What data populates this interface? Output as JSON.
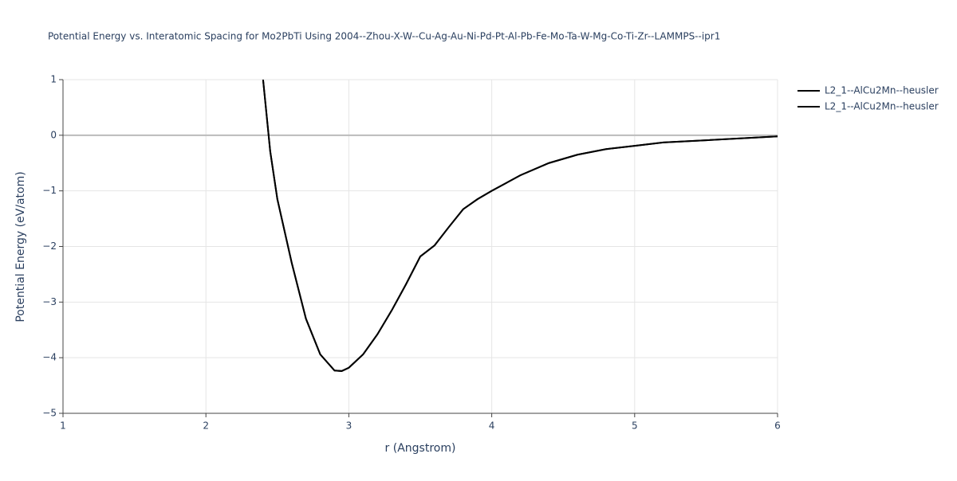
{
  "chart_data": {
    "type": "line",
    "title": "Potential Energy vs. Interatomic Spacing for Mo2PbTi Using 2004--Zhou-X-W--Cu-Ag-Au-Ni-Pd-Pt-Al-Pb-Fe-Mo-Ta-W-Mg-Co-Ti-Zr--LAMMPS--ipr1",
    "x_label": "r (Angstrom)",
    "y_label": "Potential Energy (eV/atom)",
    "x": [
      2.4,
      2.45,
      2.5,
      2.6,
      2.7,
      2.8,
      2.9,
      2.95,
      3.0,
      3.1,
      3.2,
      3.3,
      3.4,
      3.5,
      3.6,
      3.7,
      3.8,
      3.9,
      4.0,
      4.2,
      4.4,
      4.6,
      4.8,
      5.0,
      5.2,
      5.5,
      6.0
    ],
    "series": [
      {
        "name": "L2_1--AlCu2Mn--heusler",
        "color": "#000000",
        "values": [
          1,
          -0.29,
          -1.15,
          -2.29,
          -3.3,
          -3.94,
          -4.23,
          -4.24,
          -4.18,
          -3.94,
          -3.58,
          -3.15,
          -2.68,
          -2.18,
          -1.98,
          -1.65,
          -1.33,
          -1.15,
          -1.0,
          -0.72,
          -0.5,
          -0.35,
          -0.25,
          -0.19,
          -0.13,
          -0.09,
          -0.02
        ]
      },
      {
        "name": "L2_1--AlCu2Mn--heusler",
        "color": "#000000",
        "values": [
          1,
          -0.29,
          -1.15,
          -2.29,
          -3.3,
          -3.94,
          -4.23,
          -4.24,
          -4.18,
          -3.94,
          -3.58,
          -3.15,
          -2.68,
          -2.18,
          -1.98,
          -1.65,
          -1.33,
          -1.15,
          -1.0,
          -0.72,
          -0.5,
          -0.35,
          -0.25,
          -0.19,
          -0.13,
          -0.09,
          -0.02
        ]
      }
    ],
    "xlim": [
      1,
      6
    ],
    "xticks": [
      1,
      2,
      3,
      4,
      5,
      6
    ],
    "ylim": [
      -5,
      1
    ],
    "yticks": [
      {
        "value": -5,
        "label": "−5"
      },
      {
        "value": -4,
        "label": "−4"
      },
      {
        "value": -3,
        "label": "−3"
      },
      {
        "value": -2,
        "label": "−2"
      },
      {
        "value": -1,
        "label": "−1"
      },
      0,
      1
    ],
    "grid": true
  }
}
